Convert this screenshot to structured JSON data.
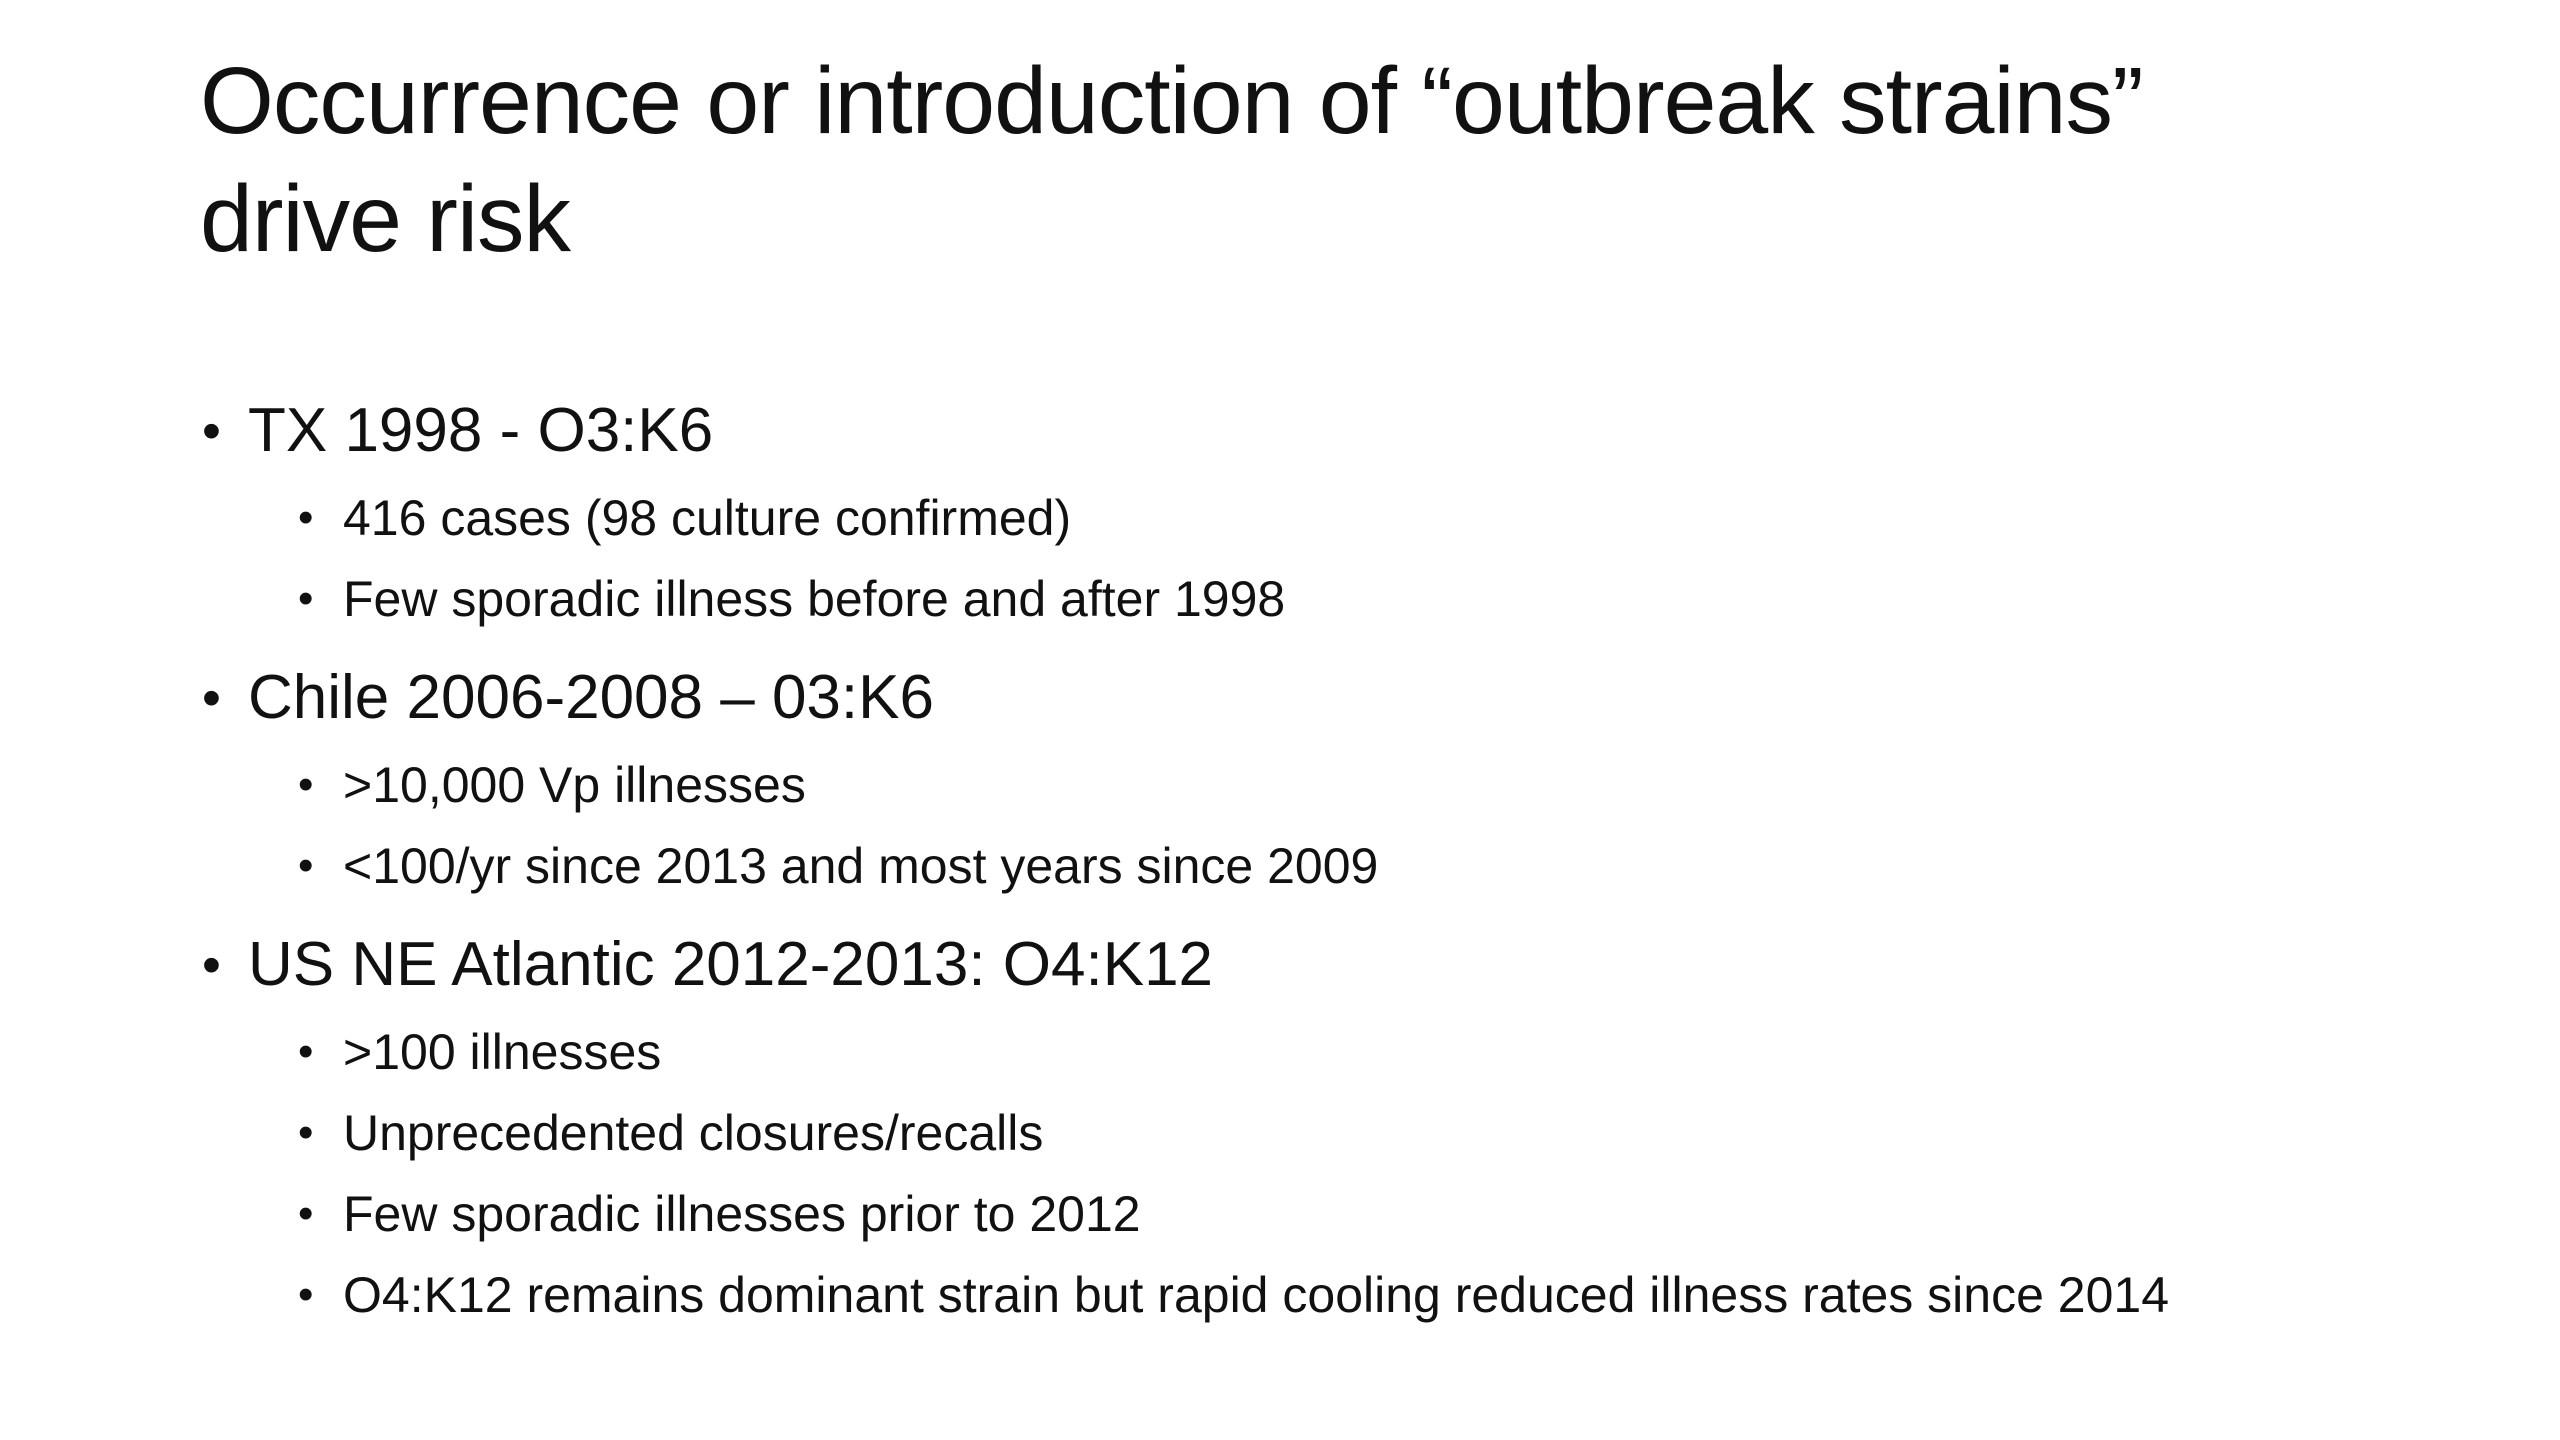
{
  "slide": {
    "background_color": "#ffffff",
    "text_color": "#111111",
    "bullet_glyph": "•",
    "title": {
      "line1": "Occurrence or introduction of “outbreak strains”",
      "line2": "drive risk"
    },
    "bullets": [
      {
        "text": "TX 1998 - O3:K6",
        "subs": [
          "416 cases (98 culture confirmed)",
          "Few sporadic illness before and after 1998"
        ]
      },
      {
        "text": "Chile 2006-2008 – 03:K6",
        "subs": [
          ">10,000 Vp illnesses",
          "<100/yr since 2013 and most years since 2009"
        ]
      },
      {
        "text": "US NE Atlantic 2012-2013: O4:K12",
        "subs": [
          ">100 illnesses",
          "Unprecedented closures/recalls",
          "Few sporadic illnesses prior to 2012",
          "O4:K12 remains dominant strain but rapid cooling reduced illness rates since 2014"
        ]
      }
    ]
  }
}
